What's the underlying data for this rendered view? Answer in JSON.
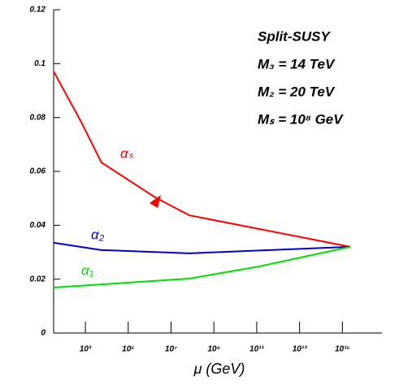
{
  "chart_data": {
    "type": "line",
    "xlabel": "μ (GeV)",
    "annotations": [
      "Split-SUSY",
      "M₃ = 14 TeV",
      "M₂ = 20 TeV",
      "Mₛ = 10⁸ GeV"
    ],
    "xscale": "log",
    "xlim": [
      33,
      70000000000000000
    ],
    "ylim": [
      0,
      0.12
    ],
    "xticks": [
      {
        "value": 1000,
        "label": "10³"
      },
      {
        "value": 100000,
        "label": "10⁵"
      },
      {
        "value": 10000000,
        "label": "10⁷"
      },
      {
        "value": 1000000000,
        "label": "10⁹"
      },
      {
        "value": 100000000000,
        "label": "10¹¹"
      },
      {
        "value": 10000000000000,
        "label": "10¹³"
      },
      {
        "value": 1000000000000000,
        "label": "10¹⁵"
      }
    ],
    "yticks": [
      0,
      0.02,
      0.04,
      0.06,
      0.08,
      0.1,
      0.12
    ],
    "series": [
      {
        "name": "αₛ",
        "color": "#ff0000",
        "x": [
          33,
          631,
          5623,
          1780000,
          70800000,
          2340000000000000
        ],
        "values": [
          0.0971,
          0.0784,
          0.0633,
          0.0504,
          0.0437,
          0.032
        ]
      },
      {
        "name": "α₂",
        "color": "#0000cc",
        "x": [
          33,
          5623,
          70800000,
          2340000000000000
        ],
        "values": [
          0.0335,
          0.0308,
          0.0296,
          0.032
        ]
      },
      {
        "name": "α₁",
        "color": "#00dd00",
        "x": [
          33,
          70800000,
          126000000000,
          2340000000000000
        ],
        "values": [
          0.0169,
          0.0202,
          0.0247,
          0.032
        ]
      }
    ]
  }
}
